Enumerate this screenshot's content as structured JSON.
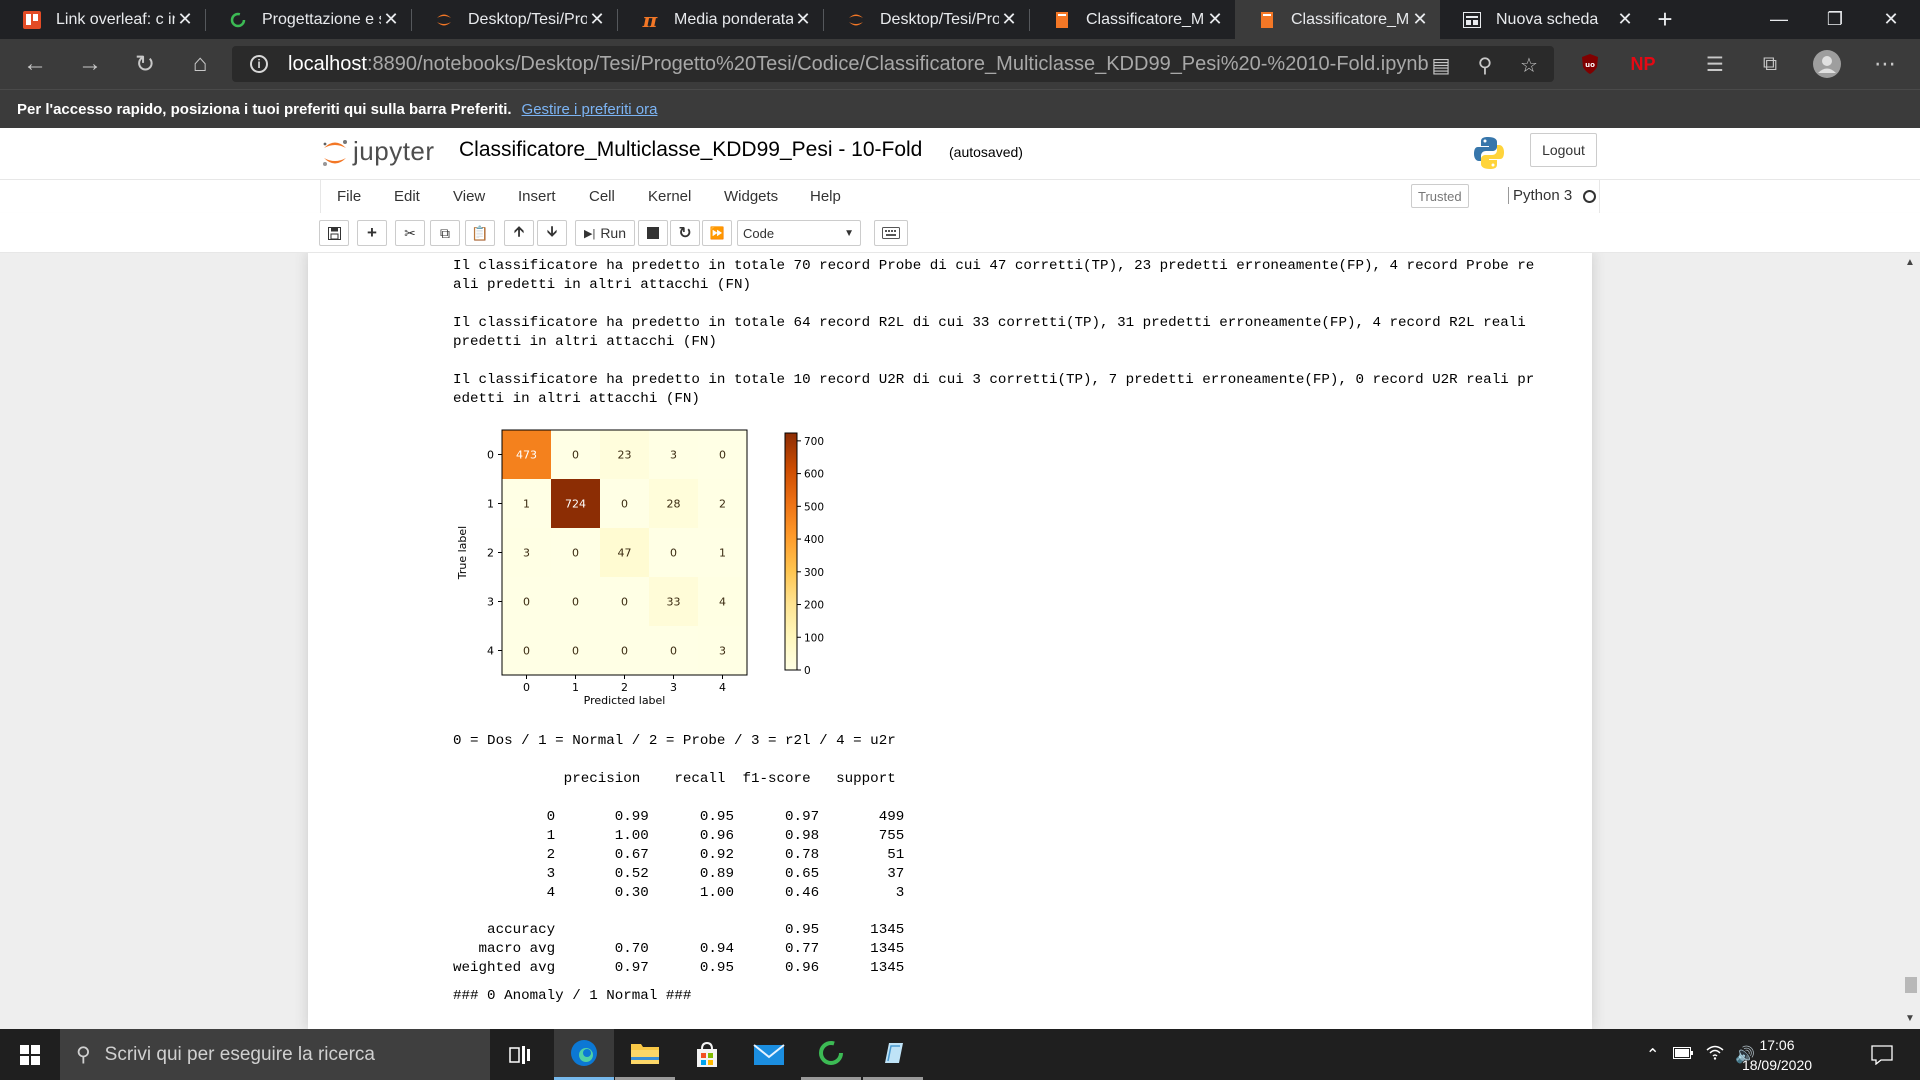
{
  "browser": {
    "tabs": [
      {
        "title": "Link overleaf: c in l",
        "icon": "trello-icon",
        "color": "#e34c26"
      },
      {
        "title": "Progettazione e sv",
        "icon": "refresh-green-icon",
        "color": "#3cba54"
      },
      {
        "title": "Desktop/Tesi/Prog",
        "icon": "jupyter-icon",
        "color": "#f37726"
      },
      {
        "title": "Media ponderata",
        "icon": "pi-icon",
        "color": "#f37726"
      },
      {
        "title": "Desktop/Tesi/Prog",
        "icon": "jupyter-icon",
        "color": "#f37726"
      },
      {
        "title": "Classificatore_Mul",
        "icon": "notebook-icon",
        "color": "#f37726"
      },
      {
        "title": "Classificatore_Mul",
        "icon": "notebook-icon",
        "color": "#f37726",
        "active": true
      },
      {
        "title": "Nuova scheda",
        "icon": "newtab-icon",
        "color": "#e8eaed"
      }
    ],
    "url_host": "localhost",
    "url_rest": ":8890/notebooks/Desktop/Tesi/Progetto%20Tesi/Codice/Classificatore_Multiclasse_KDD99_Pesi%20-%2010-Fold.ipynb",
    "favbar_message": "Per l'accesso rapido, posiziona i tuoi preferiti qui sulla barra Preferiti.",
    "favbar_link": "Gestire i preferiti ora",
    "ext_np": "NP",
    "ext_ublock": "uo"
  },
  "jupyter": {
    "logo_text": "jupyter",
    "notebook_name": "Classificatore_Multiclasse_KDD99_Pesi - 10-Fold",
    "autosave": "(autosaved)",
    "logout": "Logout",
    "menu": [
      "File",
      "Edit",
      "View",
      "Insert",
      "Cell",
      "Kernel",
      "Widgets",
      "Help"
    ],
    "trusted": "Trusted",
    "kernel": "Python 3",
    "run_label": "Run",
    "cell_type": "Code"
  },
  "output": {
    "para_probe_1": "Il classificatore ha predetto in totale 70 record Probe di cui 47 corretti(TP), 23 predetti erroneamente(FP), 4 record Probe re",
    "para_probe_2": "ali predetti in altri attacchi (FN)",
    "para_r2l_1": "Il classificatore ha predetto in totale 64 record R2L di cui 33 corretti(TP), 31 predetti erroneamente(FP), 4 record R2L reali",
    "para_r2l_2": "predetti in altri attacchi (FN)",
    "para_u2r_1": "Il classificatore ha predetto in totale 10 record U2R di cui 3 corretti(TP), 7 predetti erroneamente(FP), 0 record U2R reali pr",
    "para_u2r_2": "edetti in altri attacchi (FN)",
    "legend_line": "0 = Dos / 1 = Normal / 2 = Probe / 3 = r2l / 4 = u2r",
    "report_header": "             precision    recall  f1-score   support",
    "report_rows": [
      "           0       0.99      0.95      0.97       499",
      "           1       1.00      0.96      0.98       755",
      "           2       0.67      0.92      0.78        51",
      "           3       0.52      0.89      0.65        37",
      "           4       0.30      1.00      0.46         3"
    ],
    "report_summary": [
      "    accuracy                           0.95      1345",
      "   macro avg       0.70      0.94      0.77      1345",
      "weighted avg       0.97      0.95      0.96      1345"
    ],
    "anomaly_line": "### 0 Anomaly / 1 Normal ###"
  },
  "chart_data": {
    "type": "heatmap",
    "xlabel": "Predicted label",
    "ylabel": "True label",
    "x_ticks": [
      "0",
      "1",
      "2",
      "3",
      "4"
    ],
    "y_ticks": [
      "0",
      "1",
      "2",
      "3",
      "4"
    ],
    "matrix": [
      [
        473,
        0,
        23,
        3,
        0
      ],
      [
        1,
        724,
        0,
        28,
        2
      ],
      [
        3,
        0,
        47,
        0,
        1
      ],
      [
        0,
        0,
        0,
        33,
        4
      ],
      [
        0,
        0,
        0,
        0,
        3
      ]
    ],
    "colormap": "YlOrBr",
    "colorbar_ticks": [
      0,
      100,
      200,
      300,
      400,
      500,
      600,
      700
    ],
    "vmin": 0,
    "vmax": 724
  },
  "taskbar": {
    "search_placeholder": "Scrivi qui per eseguire la ricerca",
    "time": "17:06",
    "date": "18/09/2020"
  }
}
